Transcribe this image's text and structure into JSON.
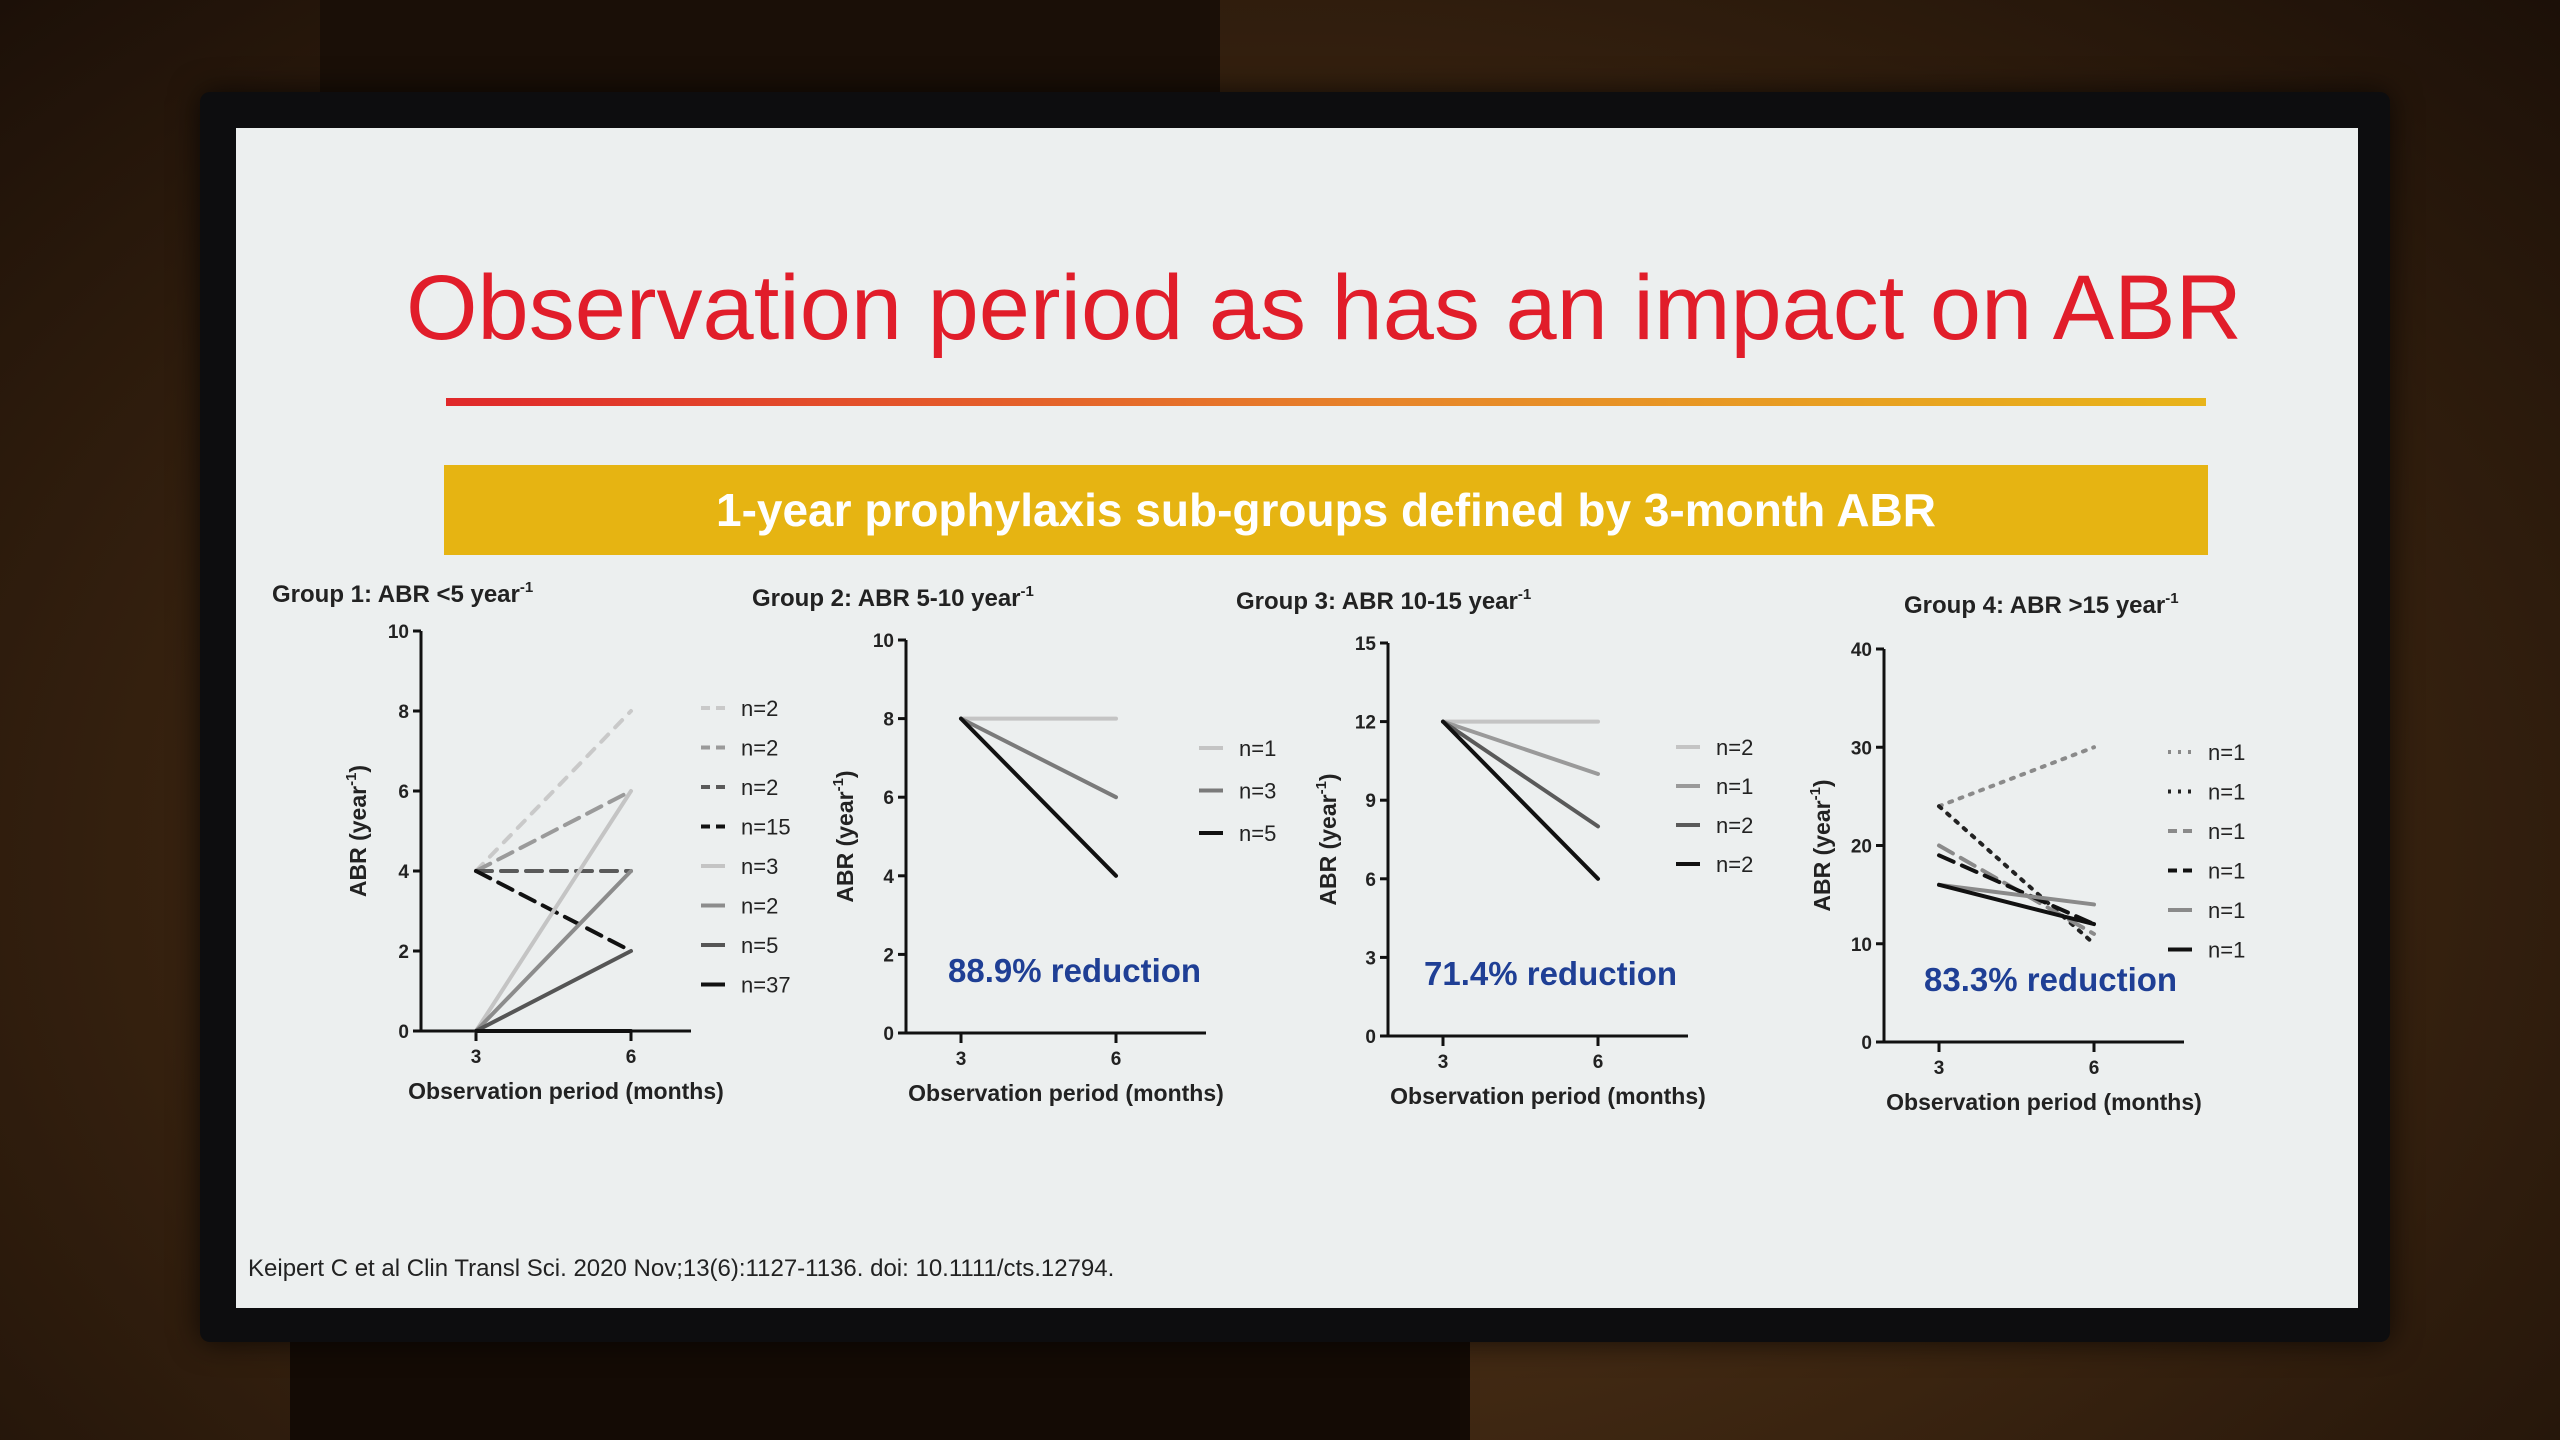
{
  "slide": {
    "title": "Observation period as has an impact on ABR",
    "banner": "1-year prophylaxis sub-groups defined by 3-month ABR",
    "citation": "Keipert C et al Clin Transl Sci. 2020 Nov;13(6):1127-1136. doi: 10.1111/cts.12794."
  },
  "chart_data": [
    {
      "type": "line",
      "title": "Group 1: ABR <5 year",
      "title_sup": "-1",
      "xlabel": "Observation period (months)",
      "ylabel": "ABR (year",
      "ylabel_sup": "-1",
      "ylabel_close": ")",
      "x": [
        3,
        6
      ],
      "xticks": [
        "3",
        "6"
      ],
      "ylim": [
        0,
        10
      ],
      "yticks": [
        0,
        2,
        4,
        6,
        8,
        10
      ],
      "series": [
        {
          "name": "n=2",
          "values": [
            4,
            8
          ],
          "color": "#c9c9c9",
          "dash": "dash-light"
        },
        {
          "name": "n=2",
          "values": [
            4,
            6
          ],
          "color": "#9a9a9a",
          "dash": "dash"
        },
        {
          "name": "n=2",
          "values": [
            4,
            4
          ],
          "color": "#5a5a5a",
          "dash": "dash"
        },
        {
          "name": "n=15",
          "values": [
            4,
            2
          ],
          "color": "#111111",
          "dash": "dash"
        },
        {
          "name": "n=3",
          "values": [
            0,
            6
          ],
          "color": "#c4c4c4",
          "dash": "solid"
        },
        {
          "name": "n=2",
          "values": [
            0,
            4
          ],
          "color": "#8c8c8c",
          "dash": "solid"
        },
        {
          "name": "n=5",
          "values": [
            0,
            2
          ],
          "color": "#555555",
          "dash": "solid"
        },
        {
          "name": "n=37",
          "values": [
            0,
            0
          ],
          "color": "#111111",
          "dash": "solid"
        }
      ],
      "reduction_label": ""
    },
    {
      "type": "line",
      "title": "Group 2: ABR 5-10 year",
      "title_sup": "-1",
      "xlabel": "Observation period (months)",
      "ylabel": "ABR (year",
      "ylabel_sup": "-1",
      "ylabel_close": ")",
      "x": [
        3,
        6
      ],
      "xticks": [
        "3",
        "6"
      ],
      "ylim": [
        0,
        10
      ],
      "yticks": [
        0,
        2,
        4,
        6,
        8,
        10
      ],
      "series": [
        {
          "name": "n=1",
          "values": [
            8,
            8
          ],
          "color": "#c4c4c4",
          "dash": "solid"
        },
        {
          "name": "n=3",
          "values": [
            8,
            6
          ],
          "color": "#7a7a7a",
          "dash": "solid"
        },
        {
          "name": "n=5",
          "values": [
            8,
            4
          ],
          "color": "#111111",
          "dash": "solid"
        }
      ],
      "reduction_label": "88.9% reduction"
    },
    {
      "type": "line",
      "title": "Group 3: ABR 10-15 year",
      "title_sup": "-1",
      "xlabel": "Observation period (months)",
      "ylabel": "ABR (year",
      "ylabel_sup": "-1",
      "ylabel_close": ")",
      "x": [
        3,
        6
      ],
      "xticks": [
        "3",
        "6"
      ],
      "ylim": [
        0,
        15
      ],
      "yticks": [
        0,
        3,
        6,
        9,
        12,
        15
      ],
      "series": [
        {
          "name": "n=2",
          "values": [
            12,
            12
          ],
          "color": "#c4c4c4",
          "dash": "solid"
        },
        {
          "name": "n=1",
          "values": [
            12,
            10
          ],
          "color": "#9a9a9a",
          "dash": "solid"
        },
        {
          "name": "n=2",
          "values": [
            12,
            8
          ],
          "color": "#5a5a5a",
          "dash": "solid"
        },
        {
          "name": "n=2",
          "values": [
            12,
            6
          ],
          "color": "#111111",
          "dash": "solid"
        }
      ],
      "reduction_label": "71.4% reduction"
    },
    {
      "type": "line",
      "title": "Group 4: ABR >15 year",
      "title_sup": "-1",
      "xlabel": "Observation period (months)",
      "ylabel": "ABR (year",
      "ylabel_sup": "-1",
      "ylabel_close": ")",
      "x": [
        3,
        6
      ],
      "xticks": [
        "3",
        "6"
      ],
      "ylim": [
        0,
        40
      ],
      "yticks": [
        0,
        10,
        20,
        30,
        40
      ],
      "series": [
        {
          "name": "n=1",
          "values": [
            24,
            30
          ],
          "color": "#8a8a8a",
          "dash": "dot"
        },
        {
          "name": "n=1",
          "values": [
            24,
            10
          ],
          "color": "#222222",
          "dash": "dot"
        },
        {
          "name": "n=1",
          "values": [
            20,
            11
          ],
          "color": "#8a8a8a",
          "dash": "dash"
        },
        {
          "name": "n=1",
          "values": [
            19,
            12
          ],
          "color": "#111111",
          "dash": "dash"
        },
        {
          "name": "n=1",
          "values": [
            16,
            14
          ],
          "color": "#8a8a8a",
          "dash": "solid"
        },
        {
          "name": "n=1",
          "values": [
            16,
            12
          ],
          "color": "#111111",
          "dash": "solid"
        }
      ],
      "reduction_label": "83.3% reduction"
    }
  ]
}
